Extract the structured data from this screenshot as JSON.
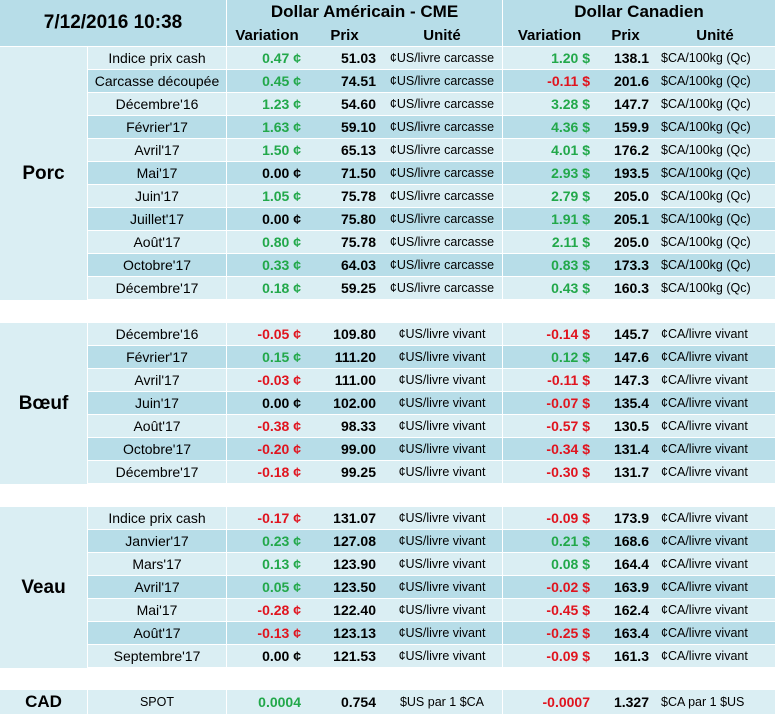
{
  "header": {
    "datetime": "7/12/2016 10:38",
    "usd_group": "Dollar Américain - CME",
    "cad_group": "Dollar Canadien",
    "col_variation": "Variation",
    "col_prix": "Prix",
    "col_unite": "Unité"
  },
  "sections": [
    {
      "name": "Porc",
      "rows": [
        {
          "label": "Indice prix cash",
          "usd_var": "0.47 ¢",
          "usd_dir": "pos",
          "usd_price": "51.03",
          "usd_unit": "¢US/livre carcasse",
          "cad_var": "1.20 $",
          "cad_dir": "pos",
          "cad_price": "138.1",
          "cad_unit": "$CA/100kg (Qc)"
        },
        {
          "label": "Carcasse découpée",
          "usd_var": "0.45 ¢",
          "usd_dir": "pos",
          "usd_price": "74.51",
          "usd_unit": "¢US/livre carcasse",
          "cad_var": "-0.11 $",
          "cad_dir": "neg",
          "cad_price": "201.6",
          "cad_unit": "$CA/100kg (Qc)"
        },
        {
          "label": "Décembre'16",
          "usd_var": "1.23 ¢",
          "usd_dir": "pos",
          "usd_price": "54.60",
          "usd_unit": "¢US/livre carcasse",
          "cad_var": "3.28 $",
          "cad_dir": "pos",
          "cad_price": "147.7",
          "cad_unit": "$CA/100kg (Qc)"
        },
        {
          "label": "Février'17",
          "usd_var": "1.63 ¢",
          "usd_dir": "pos",
          "usd_price": "59.10",
          "usd_unit": "¢US/livre carcasse",
          "cad_var": "4.36 $",
          "cad_dir": "pos",
          "cad_price": "159.9",
          "cad_unit": "$CA/100kg (Qc)"
        },
        {
          "label": "Avril'17",
          "usd_var": "1.50 ¢",
          "usd_dir": "pos",
          "usd_price": "65.13",
          "usd_unit": "¢US/livre carcasse",
          "cad_var": "4.01 $",
          "cad_dir": "pos",
          "cad_price": "176.2",
          "cad_unit": "$CA/100kg (Qc)"
        },
        {
          "label": "Mai'17",
          "usd_var": "0.00 ¢",
          "usd_dir": "zer",
          "usd_price": "71.50",
          "usd_unit": "¢US/livre carcasse",
          "cad_var": "2.93 $",
          "cad_dir": "pos",
          "cad_price": "193.5",
          "cad_unit": "$CA/100kg (Qc)"
        },
        {
          "label": "Juin'17",
          "usd_var": "1.05 ¢",
          "usd_dir": "pos",
          "usd_price": "75.78",
          "usd_unit": "¢US/livre carcasse",
          "cad_var": "2.79 $",
          "cad_dir": "pos",
          "cad_price": "205.0",
          "cad_unit": "$CA/100kg (Qc)"
        },
        {
          "label": "Juillet'17",
          "usd_var": "0.00 ¢",
          "usd_dir": "zer",
          "usd_price": "75.80",
          "usd_unit": "¢US/livre carcasse",
          "cad_var": "1.91 $",
          "cad_dir": "pos",
          "cad_price": "205.1",
          "cad_unit": "$CA/100kg (Qc)"
        },
        {
          "label": "Août'17",
          "usd_var": "0.80 ¢",
          "usd_dir": "pos",
          "usd_price": "75.78",
          "usd_unit": "¢US/livre carcasse",
          "cad_var": "2.11 $",
          "cad_dir": "pos",
          "cad_price": "205.0",
          "cad_unit": "$CA/100kg (Qc)"
        },
        {
          "label": "Octobre'17",
          "usd_var": "0.33 ¢",
          "usd_dir": "pos",
          "usd_price": "64.03",
          "usd_unit": "¢US/livre carcasse",
          "cad_var": "0.83 $",
          "cad_dir": "pos",
          "cad_price": "173.3",
          "cad_unit": "$CA/100kg (Qc)"
        },
        {
          "label": "Décembre'17",
          "usd_var": "0.18 ¢",
          "usd_dir": "pos",
          "usd_price": "59.25",
          "usd_unit": "¢US/livre carcasse",
          "cad_var": "0.43 $",
          "cad_dir": "pos",
          "cad_price": "160.3",
          "cad_unit": "$CA/100kg (Qc)"
        }
      ]
    },
    {
      "name": "Bœuf",
      "rows": [
        {
          "label": "Décembre'16",
          "usd_var": "-0.05 ¢",
          "usd_dir": "neg",
          "usd_price": "109.80",
          "usd_unit": "¢US/livre vivant",
          "cad_var": "-0.14 $",
          "cad_dir": "neg",
          "cad_price": "145.7",
          "cad_unit": "¢CA/livre vivant"
        },
        {
          "label": "Février'17",
          "usd_var": "0.15 ¢",
          "usd_dir": "pos",
          "usd_price": "111.20",
          "usd_unit": "¢US/livre vivant",
          "cad_var": "0.12 $",
          "cad_dir": "pos",
          "cad_price": "147.6",
          "cad_unit": "¢CA/livre vivant"
        },
        {
          "label": "Avril'17",
          "usd_var": "-0.03 ¢",
          "usd_dir": "neg",
          "usd_price": "111.00",
          "usd_unit": "¢US/livre vivant",
          "cad_var": "-0.11 $",
          "cad_dir": "neg",
          "cad_price": "147.3",
          "cad_unit": "¢CA/livre vivant"
        },
        {
          "label": "Juin'17",
          "usd_var": "0.00 ¢",
          "usd_dir": "zer",
          "usd_price": "102.00",
          "usd_unit": "¢US/livre vivant",
          "cad_var": "-0.07 $",
          "cad_dir": "neg",
          "cad_price": "135.4",
          "cad_unit": "¢CA/livre vivant"
        },
        {
          "label": "Août'17",
          "usd_var": "-0.38 ¢",
          "usd_dir": "neg",
          "usd_price": "98.33",
          "usd_unit": "¢US/livre vivant",
          "cad_var": "-0.57 $",
          "cad_dir": "neg",
          "cad_price": "130.5",
          "cad_unit": "¢CA/livre vivant"
        },
        {
          "label": "Octobre'17",
          "usd_var": "-0.20 ¢",
          "usd_dir": "neg",
          "usd_price": "99.00",
          "usd_unit": "¢US/livre vivant",
          "cad_var": "-0.34 $",
          "cad_dir": "neg",
          "cad_price": "131.4",
          "cad_unit": "¢CA/livre vivant"
        },
        {
          "label": "Décembre'17",
          "usd_var": "-0.18 ¢",
          "usd_dir": "neg",
          "usd_price": "99.25",
          "usd_unit": "¢US/livre vivant",
          "cad_var": "-0.30 $",
          "cad_dir": "neg",
          "cad_price": "131.7",
          "cad_unit": "¢CA/livre vivant"
        }
      ]
    },
    {
      "name": "Veau",
      "rows": [
        {
          "label": "Indice prix cash",
          "usd_var": "-0.17 ¢",
          "usd_dir": "neg",
          "usd_price": "131.07",
          "usd_unit": "¢US/livre vivant",
          "cad_var": "-0.09 $",
          "cad_dir": "neg",
          "cad_price": "173.9",
          "cad_unit": "¢CA/livre vivant"
        },
        {
          "label": "Janvier'17",
          "usd_var": "0.23 ¢",
          "usd_dir": "pos",
          "usd_price": "127.08",
          "usd_unit": "¢US/livre vivant",
          "cad_var": "0.21 $",
          "cad_dir": "pos",
          "cad_price": "168.6",
          "cad_unit": "¢CA/livre vivant"
        },
        {
          "label": "Mars'17",
          "usd_var": "0.13 ¢",
          "usd_dir": "pos",
          "usd_price": "123.90",
          "usd_unit": "¢US/livre vivant",
          "cad_var": "0.08 $",
          "cad_dir": "pos",
          "cad_price": "164.4",
          "cad_unit": "¢CA/livre vivant"
        },
        {
          "label": "Avril'17",
          "usd_var": "0.05 ¢",
          "usd_dir": "pos",
          "usd_price": "123.50",
          "usd_unit": "¢US/livre vivant",
          "cad_var": "-0.02 $",
          "cad_dir": "neg",
          "cad_price": "163.9",
          "cad_unit": "¢CA/livre vivant"
        },
        {
          "label": "Mai'17",
          "usd_var": "-0.28 ¢",
          "usd_dir": "neg",
          "usd_price": "122.40",
          "usd_unit": "¢US/livre vivant",
          "cad_var": "-0.45 $",
          "cad_dir": "neg",
          "cad_price": "162.4",
          "cad_unit": "¢CA/livre vivant"
        },
        {
          "label": "Août'17",
          "usd_var": "-0.13 ¢",
          "usd_dir": "neg",
          "usd_price": "123.13",
          "usd_unit": "¢US/livre vivant",
          "cad_var": "-0.25 $",
          "cad_dir": "neg",
          "cad_price": "163.4",
          "cad_unit": "¢CA/livre vivant"
        },
        {
          "label": "Septembre'17",
          "usd_var": "0.00 ¢",
          "usd_dir": "zer",
          "usd_price": "121.53",
          "usd_unit": "¢US/livre vivant",
          "cad_var": "-0.09 $",
          "cad_dir": "neg",
          "cad_price": "161.3",
          "cad_unit": "¢CA/livre vivant"
        }
      ]
    }
  ],
  "cad": {
    "name": "CAD",
    "label": "SPOT",
    "usd_var": "0.0004",
    "usd_dir": "pos",
    "usd_price": "0.754",
    "usd_unit": "$US par 1 $CA",
    "cad_var": "-0.0007",
    "cad_dir": "neg",
    "cad_price": "1.327",
    "cad_unit": "$CA par 1 $US"
  }
}
